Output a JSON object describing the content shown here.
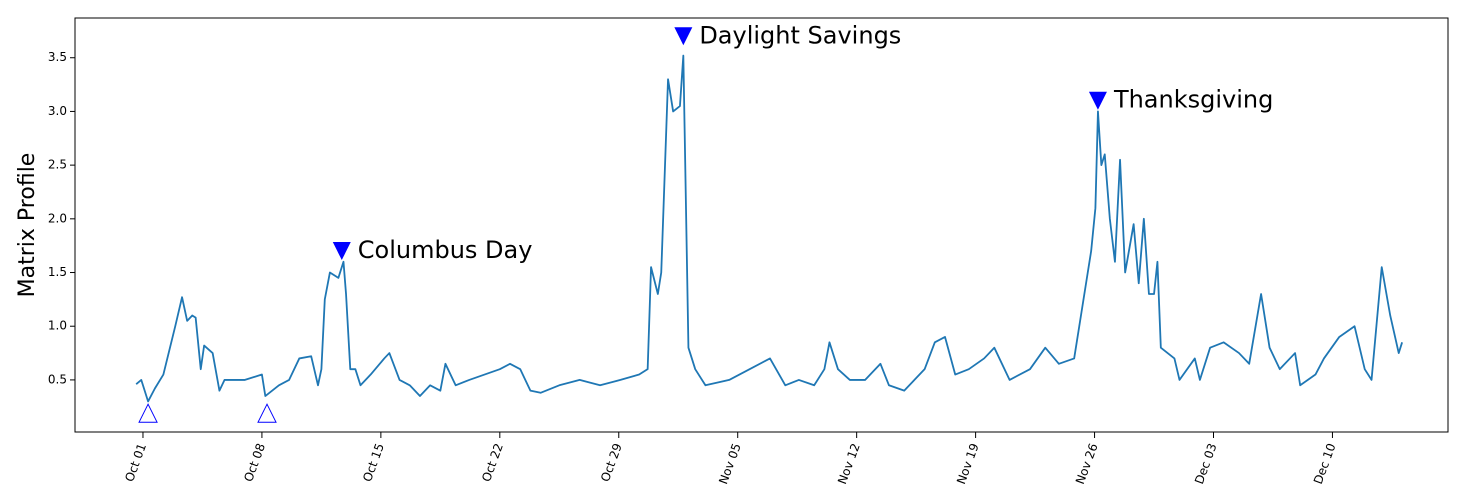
{
  "chart_data": {
    "type": "line",
    "ylabel": "Matrix Profile",
    "x": [
      -0.4,
      -0.1,
      0.3,
      0.7,
      1.2,
      1.9,
      2.3,
      2.6,
      2.9,
      3.1,
      3.4,
      3.6,
      4.1,
      4.5,
      4.8,
      6.0,
      7.0,
      7.2,
      8.0,
      8.6,
      9.2,
      9.9,
      10.3,
      10.5,
      10.7,
      11.0,
      11.5,
      11.8,
      11.95,
      12.2,
      12.5,
      12.8,
      13.4,
      14.2,
      14.5,
      15.1,
      15.7,
      16.3,
      16.9,
      17.5,
      17.8,
      18.4,
      19.2,
      20.1,
      21.0,
      21.6,
      22.2,
      22.8,
      23.4,
      24.5,
      25.7,
      26.9,
      28.1,
      29.2,
      29.7,
      29.9,
      30.3,
      30.5,
      30.9,
      31.2,
      31.6,
      31.8,
      32.1,
      32.5,
      33.1,
      34.5,
      35.7,
      36.9,
      37.8,
      38.6,
      39.5,
      40.1,
      40.4,
      40.9,
      41.6,
      42.5,
      43.4,
      43.9,
      44.8,
      45.4,
      46.0,
      46.6,
      47.2,
      47.8,
      48.6,
      49.5,
      50.1,
      51.0,
      52.2,
      53.1,
      53.9,
      54.8,
      55.1,
      55.6,
      55.8,
      56.05,
      56.2,
      56.4,
      56.6,
      56.9,
      57.2,
      57.5,
      57.8,
      58.3,
      58.6,
      58.9,
      59.2,
      59.5,
      59.7,
      59.9,
      60.7,
      61.0,
      61.9,
      62.2,
      62.8,
      63.6,
      64.5,
      65.1,
      65.8,
      66.3,
      66.9,
      67.8,
      68.1,
      69.0,
      69.5,
      70.4,
      71.3,
      71.9,
      72.3,
      72.9,
      73.4,
      73.9,
      74.1
    ],
    "series": [
      {
        "color": "#1f77b4",
        "values": [
          0.46,
          0.5,
          0.3,
          0.42,
          0.55,
          1.0,
          1.27,
          1.05,
          1.1,
          1.08,
          0.6,
          0.82,
          0.75,
          0.4,
          0.5,
          0.5,
          0.55,
          0.35,
          0.45,
          0.5,
          0.7,
          0.72,
          0.45,
          0.6,
          1.25,
          1.5,
          1.45,
          1.6,
          1.3,
          0.6,
          0.6,
          0.45,
          0.55,
          0.7,
          0.75,
          0.5,
          0.45,
          0.35,
          0.45,
          0.4,
          0.65,
          0.45,
          0.5,
          0.55,
          0.6,
          0.65,
          0.6,
          0.4,
          0.38,
          0.45,
          0.5,
          0.45,
          0.5,
          0.55,
          0.6,
          1.55,
          1.3,
          1.5,
          3.3,
          3.0,
          3.05,
          3.52,
          0.8,
          0.6,
          0.45,
          0.5,
          0.6,
          0.7,
          0.45,
          0.5,
          0.45,
          0.6,
          0.85,
          0.6,
          0.5,
          0.5,
          0.65,
          0.45,
          0.4,
          0.5,
          0.6,
          0.85,
          0.9,
          0.55,
          0.6,
          0.7,
          0.8,
          0.5,
          0.6,
          0.8,
          0.65,
          0.7,
          1.0,
          1.5,
          1.7,
          2.1,
          3.0,
          2.5,
          2.6,
          2.0,
          1.6,
          2.55,
          1.5,
          1.95,
          1.4,
          2.0,
          1.3,
          1.3,
          1.6,
          0.8,
          0.7,
          0.5,
          0.7,
          0.5,
          0.8,
          0.85,
          0.75,
          0.65,
          1.3,
          0.8,
          0.6,
          0.75,
          0.45,
          0.55,
          0.7,
          0.9,
          1.0,
          0.6,
          0.5,
          1.55,
          1.1,
          0.75,
          0.85
        ]
      }
    ],
    "xlim": [
      -4,
      76.8
    ],
    "ylim": [
      0.015,
      3.87
    ],
    "xticks": [
      {
        "value": 0,
        "label": "Oct 01"
      },
      {
        "value": 7,
        "label": "Oct 08"
      },
      {
        "value": 14,
        "label": "Oct 15"
      },
      {
        "value": 21,
        "label": "Oct 22"
      },
      {
        "value": 28,
        "label": "Oct 29"
      },
      {
        "value": 35,
        "label": "Nov 05"
      },
      {
        "value": 42,
        "label": "Nov 12"
      },
      {
        "value": 49,
        "label": "Nov 19"
      },
      {
        "value": 56,
        "label": "Nov 26"
      },
      {
        "value": 63,
        "label": "Dec 03"
      },
      {
        "value": 70,
        "label": "Dec 10"
      }
    ],
    "yticks": [
      0.5,
      {
        "value": 1,
        "label": "1.0"
      },
      1.5,
      {
        "value": 2,
        "label": "2.0"
      },
      2.5,
      {
        "value": 3,
        "label": "3.0"
      },
      3.5
    ],
    "grid": false,
    "annotations": [
      {
        "x": 11.7,
        "y": 1.7,
        "text": "Columbus Day",
        "marker": "filled-down",
        "color": "#0000ff"
      },
      {
        "x": 31.8,
        "y": 3.7,
        "text": "Daylight Savings",
        "marker": "filled-down",
        "color": "#0000ff"
      },
      {
        "x": 56.2,
        "y": 3.1,
        "text": "Thanksgiving",
        "marker": "filled-down",
        "color": "#0000ff"
      },
      {
        "x": 0.3,
        "y": 0.19,
        "marker": "open-up",
        "color": "#0000ff"
      },
      {
        "x": 7.3,
        "y": 0.19,
        "marker": "open-up",
        "color": "#0000ff"
      }
    ]
  }
}
